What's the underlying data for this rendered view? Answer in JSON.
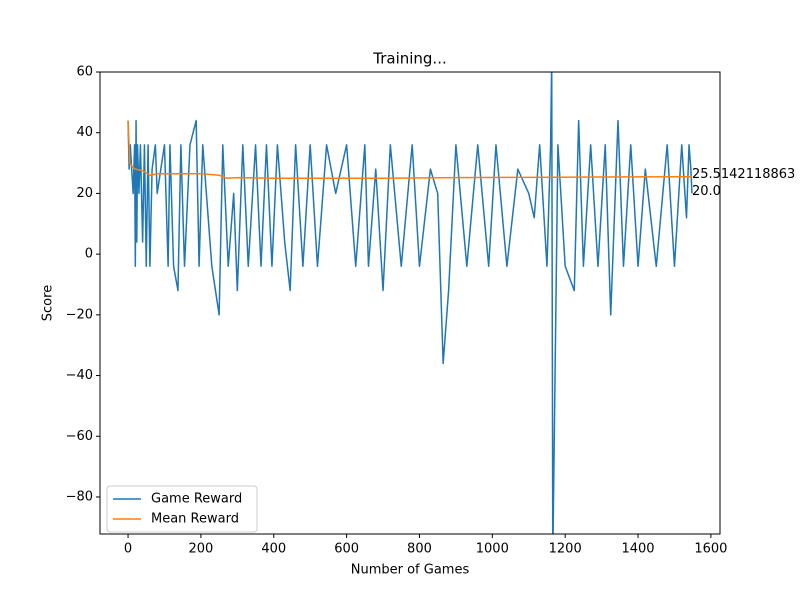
{
  "chart_data": {
    "type": "line",
    "title": "Training...",
    "x_label": "Number of Games",
    "y_label": "Score",
    "xlim": [
      -77,
      1625
    ],
    "ylim": [
      -92.2,
      60
    ],
    "xticks": [
      0,
      200,
      400,
      600,
      800,
      1000,
      1200,
      1400,
      1600
    ],
    "yticks": [
      {
        "value": -80,
        "label": "−80"
      },
      {
        "value": -60,
        "label": "−60"
      },
      {
        "value": -40,
        "label": "−40"
      },
      {
        "value": -20,
        "label": "−20"
      },
      0,
      20,
      40,
      60
    ],
    "grid": false,
    "legend": "lower left",
    "series": [
      {
        "name": "Game Reward",
        "color": "#1f77b4",
        "x": [
          0,
          3,
          6,
          10,
          14,
          18,
          20,
          22,
          24,
          26,
          28,
          30,
          34,
          40,
          45,
          50,
          55,
          60,
          66,
          75,
          80,
          90,
          100,
          110,
          115,
          125,
          137,
          145,
          155,
          170,
          187,
          195,
          205,
          215,
          230,
          250,
          260,
          275,
          290,
          300,
          315,
          330,
          350,
          365,
          380,
          395,
          410,
          430,
          445,
          460,
          480,
          500,
          520,
          545,
          570,
          600,
          625,
          650,
          660,
          680,
          700,
          720,
          750,
          780,
          800,
          830,
          850,
          865,
          880,
          900,
          930,
          960,
          990,
          1010,
          1040,
          1070,
          1100,
          1115,
          1130,
          1150,
          1160,
          1163,
          1166,
          1180,
          1200,
          1225,
          1237,
          1250,
          1270,
          1290,
          1310,
          1325,
          1345,
          1360,
          1380,
          1400,
          1420,
          1450,
          1480,
          1500,
          1520,
          1533,
          1540,
          1545,
          1548
        ],
        "values": [
          44,
          28,
          36,
          28,
          20,
          36,
          -4,
          44,
          4,
          36,
          28,
          20,
          36,
          4,
          36,
          -4,
          36,
          -4,
          28,
          36,
          20,
          28,
          36,
          -4,
          36,
          -4,
          -12,
          36,
          -4,
          36,
          44,
          -4,
          36,
          20,
          -4,
          -20,
          36,
          -4,
          20,
          -12,
          36,
          -4,
          36,
          -4,
          36,
          -4,
          36,
          4,
          -12,
          36,
          -4,
          36,
          -4,
          36,
          20,
          36,
          -4,
          36,
          -4,
          28,
          -12,
          36,
          -4,
          36,
          -4,
          28,
          20,
          -36,
          -12,
          36,
          -4,
          36,
          -4,
          36,
          -4,
          28,
          20,
          12,
          36,
          -4,
          36,
          64,
          -100,
          36,
          -4,
          -12,
          44,
          -4,
          36,
          -4,
          36,
          -20,
          44,
          -4,
          36,
          -4,
          28,
          -4,
          36,
          -4,
          36,
          12,
          36,
          28,
          20
        ]
      },
      {
        "name": "Mean Reward",
        "color": "#ff7f0e",
        "x": [
          0,
          5,
          10,
          20,
          40,
          60,
          80,
          100,
          150,
          200,
          250,
          270,
          300,
          400,
          500,
          700,
          900,
          1100,
          1300,
          1548
        ],
        "values": [
          44,
          30,
          29,
          28,
          27.5,
          26,
          26.5,
          26.5,
          26.5,
          26.5,
          26,
          25,
          25.2,
          25,
          25,
          25,
          25.2,
          25.3,
          25.4,
          25.5
        ]
      }
    ],
    "annotations": [
      "20.0",
      "25.5142118863"
    ]
  }
}
